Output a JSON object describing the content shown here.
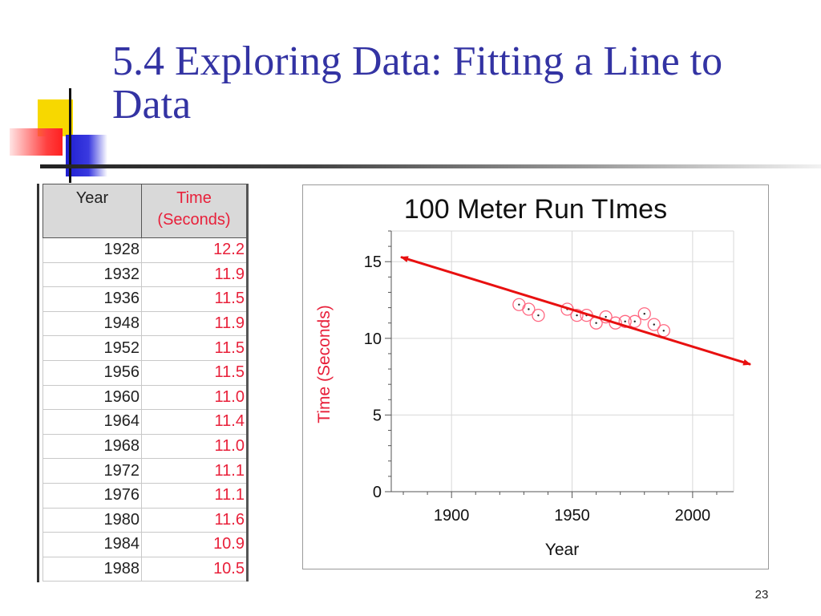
{
  "slide": {
    "title": "5.4 Exploring Data: Fitting a Line to Data",
    "page_number": "23",
    "title_color": "#3333a3"
  },
  "table": {
    "headers": [
      "Year",
      "Time (Seconds)"
    ],
    "rows": [
      [
        "1928",
        "12.2"
      ],
      [
        "1932",
        "11.9"
      ],
      [
        "1936",
        "11.5"
      ],
      [
        "1948",
        "11.9"
      ],
      [
        "1952",
        "11.5"
      ],
      [
        "1956",
        "11.5"
      ],
      [
        "1960",
        "11.0"
      ],
      [
        "1964",
        "11.4"
      ],
      [
        "1968",
        "11.0"
      ],
      [
        "1972",
        "11.1"
      ],
      [
        "1976",
        "11.1"
      ],
      [
        "1980",
        "11.6"
      ],
      [
        "1984",
        "10.9"
      ],
      [
        "1988",
        "10.5"
      ]
    ]
  },
  "chart_data": {
    "type": "scatter",
    "title": "100 Meter Run TImes",
    "xlabel": "Year",
    "ylabel": "Time (Seconds)",
    "xlim": [
      1875,
      2017
    ],
    "ylim": [
      0,
      17
    ],
    "x_ticks": [
      1900,
      1950,
      2000
    ],
    "y_ticks": [
      0,
      5,
      10,
      15
    ],
    "grid": true,
    "series": [
      {
        "x": [
          1928,
          1932,
          1936,
          1948,
          1952,
          1956,
          1960,
          1964,
          1968,
          1972,
          1976,
          1980,
          1984,
          1988
        ],
        "y": [
          12.2,
          11.9,
          11.5,
          11.9,
          11.5,
          11.5,
          11.0,
          11.4,
          11.0,
          11.1,
          11.1,
          11.6,
          10.9,
          10.5
        ],
        "color": "#ff6680"
      }
    ],
    "fit_line": {
      "x": [
        1879,
        2024
      ],
      "y": [
        15.3,
        8.3
      ],
      "color": "#e81010",
      "arrows": "both"
    },
    "ylabel_color": "#e8203a"
  }
}
